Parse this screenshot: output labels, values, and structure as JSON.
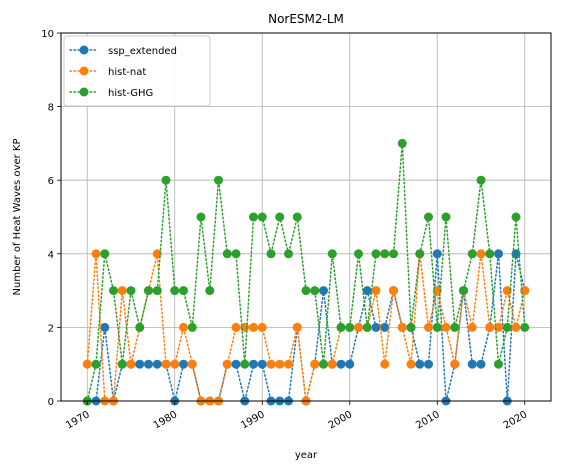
{
  "chart_data": {
    "type": "line",
    "title": "NorESM2-LM",
    "xlabel": "year",
    "ylabel": "Number of Heat Waves over KP",
    "xlim": [
      1967,
      2023
    ],
    "ylim": [
      0,
      10
    ],
    "xticks": [
      1970,
      1980,
      1990,
      2000,
      2010,
      2020
    ],
    "yticks": [
      0,
      2,
      4,
      6,
      8,
      10
    ],
    "grid": true,
    "legend_position": "top-left",
    "series": [
      {
        "name": "ssp_extended",
        "color": "#1f77b4",
        "x": [
          1970,
          1971,
          1972,
          1973,
          1974,
          1975,
          1976,
          1977,
          1978,
          1979,
          1980,
          1981,
          1982,
          1983,
          1984,
          1985,
          1986,
          1987,
          1988,
          1989,
          1990,
          1991,
          1992,
          1993,
          1994,
          1995,
          1996,
          1997,
          1998,
          1999,
          2000,
          2001,
          2002,
          2003,
          2004,
          2005,
          2006,
          2007,
          2008,
          2009,
          2010,
          2011,
          2012,
          2013,
          2014,
          2015,
          2016,
          2017,
          2018,
          2019,
          2020
        ],
        "y": [
          0,
          0,
          2,
          0,
          1,
          1,
          1,
          1,
          1,
          1,
          0,
          1,
          1,
          0,
          0,
          0,
          1,
          1,
          0,
          1,
          1,
          0,
          0,
          0,
          2,
          0,
          1,
          3,
          1,
          1,
          1,
          2,
          3,
          2,
          2,
          3,
          2,
          2,
          1,
          1,
          4,
          0,
          1,
          3,
          1,
          1,
          2,
          4,
          0,
          4,
          3
        ]
      },
      {
        "name": "hist-nat",
        "color": "#ff7f0e",
        "x": [
          1970,
          1971,
          1972,
          1973,
          1974,
          1975,
          1976,
          1977,
          1978,
          1979,
          1980,
          1981,
          1982,
          1983,
          1984,
          1985,
          1986,
          1987,
          1988,
          1989,
          1990,
          1991,
          1992,
          1993,
          1994,
          1995,
          1996,
          1997,
          1998,
          1999,
          2000,
          2001,
          2002,
          2003,
          2004,
          2005,
          2006,
          2007,
          2008,
          2009,
          2010,
          2011,
          2012,
          2013,
          2014,
          2015,
          2016,
          2017,
          2018,
          2019,
          2020
        ],
        "y": [
          1,
          4,
          0,
          0,
          3,
          1,
          2,
          3,
          4,
          1,
          1,
          2,
          1,
          0,
          0,
          0,
          1,
          2,
          2,
          2,
          2,
          1,
          1,
          1,
          2,
          0,
          1,
          1,
          1,
          2,
          2,
          2,
          2,
          3,
          1,
          3,
          2,
          1,
          4,
          2,
          3,
          2,
          1,
          3,
          2,
          4,
          2,
          2,
          3,
          2,
          3
        ]
      },
      {
        "name": "hist-GHG",
        "color": "#2ca02c",
        "x": [
          1970,
          1971,
          1972,
          1973,
          1974,
          1975,
          1976,
          1977,
          1978,
          1979,
          1980,
          1981,
          1982,
          1983,
          1984,
          1985,
          1986,
          1987,
          1988,
          1989,
          1990,
          1991,
          1992,
          1993,
          1994,
          1995,
          1996,
          1997,
          1998,
          1999,
          2000,
          2001,
          2002,
          2003,
          2004,
          2005,
          2006,
          2007,
          2008,
          2009,
          2010,
          2011,
          2012,
          2013,
          2014,
          2015,
          2016,
          2017,
          2018,
          2019,
          2020
        ],
        "y": [
          0,
          1,
          4,
          3,
          1,
          3,
          2,
          3,
          3,
          6,
          3,
          3,
          2,
          5,
          3,
          6,
          4,
          4,
          1,
          5,
          5,
          4,
          5,
          4,
          5,
          3,
          3,
          1,
          4,
          2,
          2,
          4,
          2,
          4,
          4,
          4,
          7,
          2,
          4,
          5,
          2,
          5,
          2,
          3,
          4,
          6,
          4,
          1,
          2,
          5,
          2
        ]
      }
    ]
  }
}
